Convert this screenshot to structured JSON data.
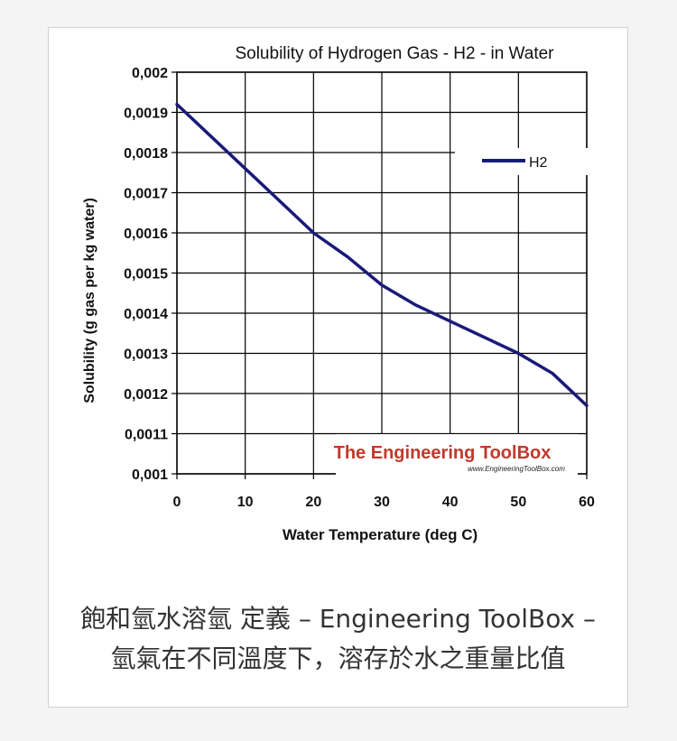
{
  "page": {
    "background": "#f4f4f4",
    "card_background": "#ffffff",
    "card_border": "#d0d0d0"
  },
  "chart_data": {
    "type": "line",
    "title": "Solubility of Hydrogen Gas - H2 - in Water",
    "xlabel": "Water Temperature (deg C)",
    "ylabel": "Solubility (g gas per kg water)",
    "xlim": [
      0,
      60
    ],
    "ylim": [
      0.001,
      0.002
    ],
    "x_ticks": [
      0,
      10,
      20,
      30,
      40,
      50,
      60
    ],
    "x_tick_labels": [
      "0",
      "10",
      "20",
      "30",
      "40",
      "50",
      "60"
    ],
    "y_ticks": [
      0.001,
      0.0011,
      0.0012,
      0.0013,
      0.0014,
      0.0015,
      0.0016,
      0.0017,
      0.0018,
      0.0019,
      0.002
    ],
    "y_tick_labels": [
      "0,001",
      "0,0011",
      "0,0012",
      "0,0013",
      "0,0014",
      "0,0015",
      "0,0016",
      "0,0017",
      "0,0018",
      "0,0019",
      "0,002"
    ],
    "grid": true,
    "legend_position": "top-right",
    "series": [
      {
        "name": "H2",
        "color": "#1a1a7a",
        "x": [
          0,
          5,
          10,
          15,
          20,
          25,
          30,
          35,
          40,
          45,
          50,
          55,
          60
        ],
        "y": [
          0.00192,
          0.00184,
          0.00176,
          0.00168,
          0.0016,
          0.00154,
          0.00147,
          0.00142,
          0.00138,
          0.00134,
          0.0013,
          0.00125,
          0.00117
        ]
      }
    ],
    "watermark": {
      "name": "The Engineering ToolBox",
      "url": "www.EngineeringToolBox.com",
      "color": "#c0392b"
    }
  },
  "caption": {
    "line1": "飽和氫水溶氫 定義 – Engineering ToolBox –",
    "line2": "氫氣在不同溫度下，溶存於水之重量比值"
  }
}
